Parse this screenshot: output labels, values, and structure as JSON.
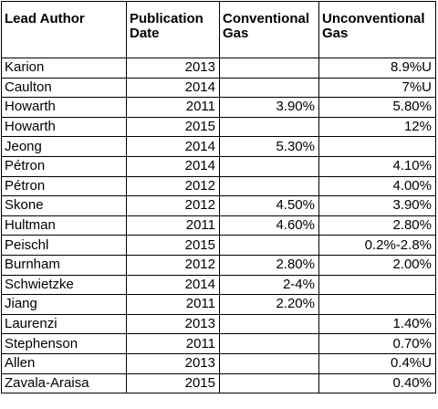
{
  "table": {
    "headers": [
      [
        "Lead Author"
      ],
      [
        "Publication",
        "Date"
      ],
      [
        "Conventional",
        "Gas"
      ],
      [
        "Unconventional",
        "Gas"
      ]
    ],
    "rows": [
      [
        "Karion",
        "2013",
        "",
        "8.9%U"
      ],
      [
        "Caulton",
        "2014",
        "",
        "7%U"
      ],
      [
        "Howarth",
        "2011",
        "3.90%",
        "5.80%"
      ],
      [
        "Howarth",
        "2015",
        "",
        "12%"
      ],
      [
        "Jeong",
        "2014",
        "5.30%",
        ""
      ],
      [
        "Pétron",
        "2014",
        "",
        "4.10%"
      ],
      [
        "Pétron",
        "2012",
        "",
        "4.00%"
      ],
      [
        "Skone",
        "2012",
        "4.50%",
        "3.90%"
      ],
      [
        "Hultman",
        "2011",
        "4.60%",
        "2.80%"
      ],
      [
        "Peischl",
        "2015",
        "",
        "0.2%-2.8%"
      ],
      [
        "Burnham",
        "2012",
        "2.80%",
        "2.00%"
      ],
      [
        "Schwietzke",
        "2014",
        "2-4%",
        ""
      ],
      [
        "Jiang",
        "2011",
        "2.20%",
        ""
      ],
      [
        "Laurenzi",
        "2013",
        "",
        "1.40%"
      ],
      [
        "Stephenson",
        "2011",
        "",
        "0.70%"
      ],
      [
        "Allen",
        "2013",
        "",
        "0.4%U"
      ],
      [
        "Zavala-Araisa",
        "2015",
        "",
        "0.40%"
      ]
    ]
  }
}
